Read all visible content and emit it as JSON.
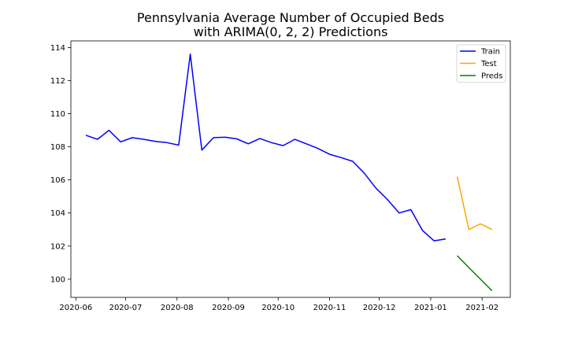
{
  "chart_data": {
    "type": "line",
    "title_line1": "Pennsylvania Average Number of Occupied Beds",
    "title_line2": "with ARIMA(0, 2, 2) Predictions",
    "xlabel": "",
    "ylabel": "",
    "x_ticks": [
      "2020-06",
      "2020-07",
      "2020-08",
      "2020-09",
      "2020-10",
      "2020-11",
      "2020-12",
      "2021-01",
      "2021-02"
    ],
    "y_ticks": [
      100,
      102,
      104,
      106,
      108,
      110,
      112,
      114
    ],
    "xlim": [
      "2020-05-29",
      "2021-02-18"
    ],
    "ylim": [
      98.9,
      114.4
    ],
    "legend_position": "top-right",
    "grid": false,
    "series": [
      {
        "name": "Train",
        "color": "#0000ff",
        "points": [
          [
            "2020-06-07",
            108.7
          ],
          [
            "2020-06-14",
            108.45
          ],
          [
            "2020-06-21",
            109.0
          ],
          [
            "2020-06-28",
            108.3
          ],
          [
            "2020-07-05",
            108.55
          ],
          [
            "2020-07-12",
            108.45
          ],
          [
            "2020-07-19",
            108.33
          ],
          [
            "2020-07-26",
            108.25
          ],
          [
            "2020-08-02",
            108.1
          ],
          [
            "2020-08-09",
            113.6
          ],
          [
            "2020-08-16",
            107.8
          ],
          [
            "2020-08-23",
            108.55
          ],
          [
            "2020-08-30",
            108.58
          ],
          [
            "2020-09-06",
            108.48
          ],
          [
            "2020-09-13",
            108.18
          ],
          [
            "2020-09-20",
            108.5
          ],
          [
            "2020-09-27",
            108.25
          ],
          [
            "2020-10-04",
            108.07
          ],
          [
            "2020-10-11",
            108.45
          ],
          [
            "2020-10-18",
            108.18
          ],
          [
            "2020-10-25",
            107.9
          ],
          [
            "2020-11-01",
            107.55
          ],
          [
            "2020-11-08",
            107.35
          ],
          [
            "2020-11-15",
            107.12
          ],
          [
            "2020-11-22",
            106.4
          ],
          [
            "2020-11-29",
            105.5
          ],
          [
            "2020-12-06",
            104.8
          ],
          [
            "2020-12-13",
            104.0
          ],
          [
            "2020-12-20",
            104.2
          ],
          [
            "2020-12-27",
            102.95
          ],
          [
            "2021-01-03",
            102.32
          ],
          [
            "2021-01-10",
            102.43
          ]
        ]
      },
      {
        "name": "Test",
        "color": "#ffa500",
        "points": [
          [
            "2021-01-17",
            106.2
          ],
          [
            "2021-01-24",
            103.0
          ],
          [
            "2021-01-31",
            103.35
          ],
          [
            "2021-02-07",
            103.0
          ]
        ]
      },
      {
        "name": "Preds",
        "color": "#008000",
        "points": [
          [
            "2021-01-17",
            101.42
          ],
          [
            "2021-01-24",
            100.7
          ],
          [
            "2021-01-31",
            100.0
          ],
          [
            "2021-02-07",
            99.3
          ]
        ]
      }
    ]
  }
}
